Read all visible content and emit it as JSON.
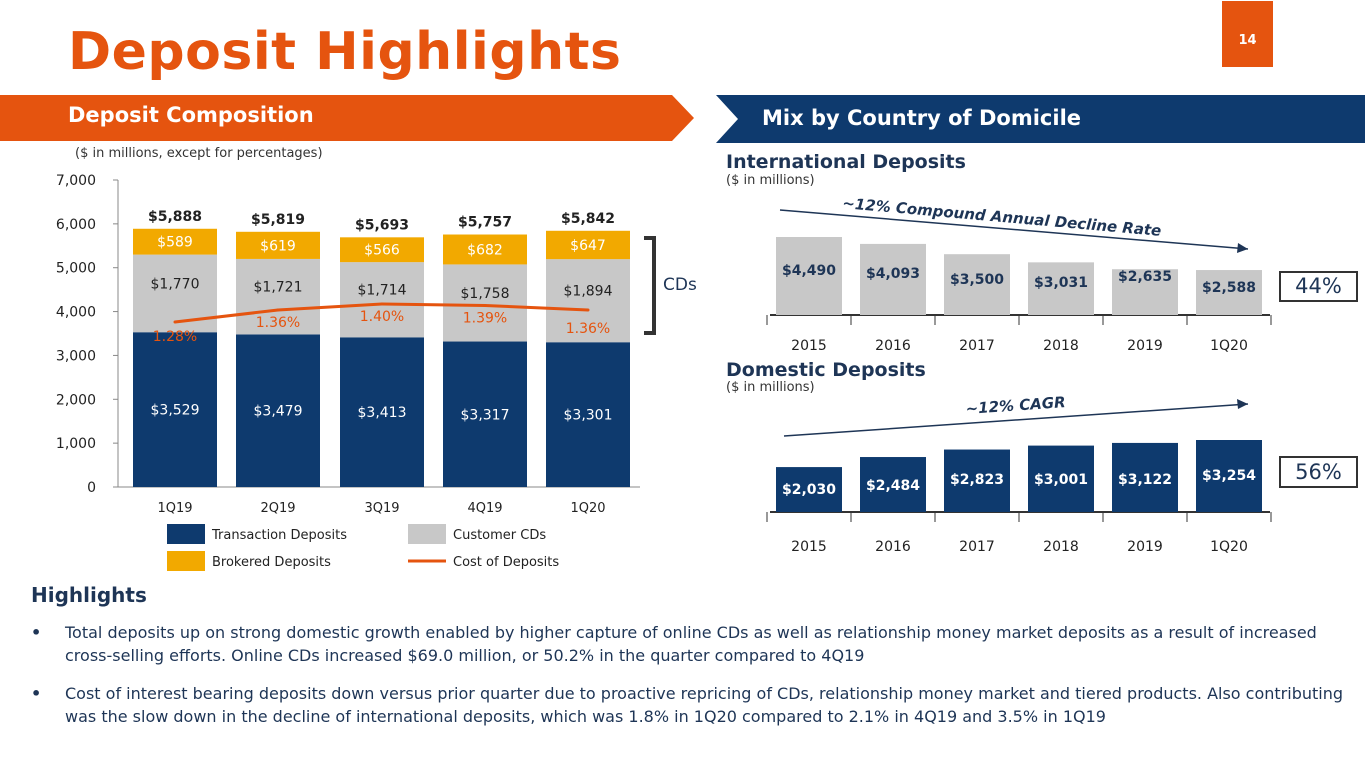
{
  "title": "Deposit Highlights",
  "page_number": "14",
  "left_banner": "Deposit Composition",
  "right_banner": "Mix by Country of Domicile",
  "composition_note": "($ in millions, except for percentages)",
  "cds_label": "CDs",
  "international": {
    "heading": "International Deposits",
    "note": "($ in millions)",
    "trend_label": "~12% Compound Annual Decline Rate",
    "share": "44%"
  },
  "domestic": {
    "heading": "Domestic Deposits",
    "note": "($ in millions)",
    "trend_label": "~12% CAGR",
    "share": "56%"
  },
  "highlights": {
    "title": "Highlights",
    "bullet_glyph": "•",
    "bullets": [
      "Total deposits up on strong domestic growth enabled by higher capture of online CDs as well as relationship money market deposits as a result of increased cross-selling efforts. Online CDs increased $69.0 million, or 50.2% in the quarter compared to 4Q19",
      "Cost of interest bearing deposits down versus prior quarter due to proactive repricing of CDs, relationship money market and tiered products. Also contributing was the slow down in the decline of international deposits, which was 1.8% in 1Q20 compared to 2.1% in 4Q19 and 3.5% in 1Q19"
    ]
  },
  "colors": {
    "orange": "#e5540f",
    "navy": "#0e3a6e",
    "gray": "#c8c8c8",
    "gold": "#f2a900",
    "text_navy": "#1e3556"
  },
  "chart_data": [
    {
      "type": "bar",
      "stacked": true,
      "categories": [
        "1Q19",
        "2Q19",
        "3Q19",
        "4Q19",
        "1Q20"
      ],
      "ylim": [
        0,
        7000
      ],
      "yticks": [
        "0",
        "1,000",
        "2,000",
        "3,000",
        "4,000",
        "5,000",
        "6,000",
        "7,000"
      ],
      "series": [
        {
          "name": "Transaction Deposits",
          "values": [
            3529,
            3479,
            3413,
            3317,
            3301
          ],
          "labels": [
            "$3,529",
            "$3,479",
            "$3,413",
            "$3,317",
            "$3,301"
          ],
          "color": "#0e3a6e"
        },
        {
          "name": "Customer CDs",
          "values": [
            1770,
            1721,
            1714,
            1758,
            1894
          ],
          "labels": [
            "$1,770",
            "$1,721",
            "$1,714",
            "$1,758",
            "$1,894"
          ],
          "color": "#c8c8c8"
        },
        {
          "name": "Brokered Deposits",
          "values": [
            589,
            619,
            566,
            682,
            647
          ],
          "labels": [
            "$589",
            "$619",
            "$566",
            "$682",
            "$647"
          ],
          "color": "#f2a900"
        }
      ],
      "totals": [
        "$5,888",
        "$5,819",
        "$5,693",
        "$5,757",
        "$5,842"
      ],
      "line": {
        "name": "Cost of Deposits",
        "values": [
          1.28,
          1.36,
          1.4,
          1.39,
          1.36
        ],
        "labels": [
          "1.28%",
          "1.36%",
          "1.40%",
          "1.39%",
          "1.36%"
        ],
        "color": "#e5540f"
      },
      "legend_position": "bottom"
    },
    {
      "type": "bar",
      "title": "International Deposits",
      "categories": [
        "2015",
        "2016",
        "2017",
        "2018",
        "2019",
        "1Q20"
      ],
      "values": [
        4490,
        4093,
        3500,
        3031,
        2635,
        2588
      ],
      "labels": [
        "$4,490",
        "$4,093",
        "$3,500",
        "$3,031",
        "$2,635",
        "$2,588"
      ],
      "color": "#c8c8c8"
    },
    {
      "type": "bar",
      "title": "Domestic Deposits",
      "categories": [
        "2015",
        "2016",
        "2017",
        "2018",
        "2019",
        "1Q20"
      ],
      "values": [
        2030,
        2484,
        2823,
        3001,
        3122,
        3254
      ],
      "labels": [
        "$2,030",
        "$2,484",
        "$2,823",
        "$3,001",
        "$3,122",
        "$3,254"
      ],
      "color": "#0e3a6e"
    }
  ]
}
